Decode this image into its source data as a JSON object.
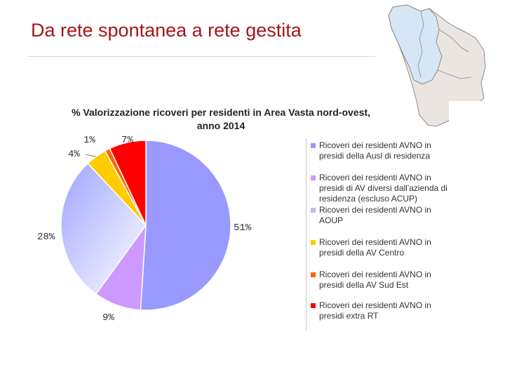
{
  "slide": {
    "title": "Da rete spontanea a rete gestita"
  },
  "chart_data": {
    "type": "pie",
    "title": "% Valorizzazione ricoveri per residenti in Area Vasta nord-ovest,",
    "subtitle": "anno 2014",
    "slices": [
      {
        "name": "Ricoveri dei residenti AVNO in presidi della Ausl di residenza",
        "value": 51,
        "label": "51%",
        "color": "#9999ff"
      },
      {
        "name": "Ricoveri dei residenti AVNO in presidi di AV diversi dall'azienda di residenza (escluso ACUP)",
        "value": 9,
        "label": "9%",
        "color": "#cc99ff"
      },
      {
        "name": "Ricoveri dei residenti AVNO in AOUP",
        "value": 28,
        "label": "28%",
        "color": "#b8bcff"
      },
      {
        "name": "Ricoveri dei residenti AVNO in presidi della AV Centro",
        "value": 4,
        "label": "4%",
        "color": "#ffcc00"
      },
      {
        "name": "Ricoveri dei residenti AVNO in presidi della AV Sud Est",
        "value": 1,
        "label": "1%",
        "color": "#ff6600"
      },
      {
        "name": "Ricoveri dei residenti AVNO in presidi extra RT",
        "value": 7,
        "label": "7%",
        "color": "#ff0000"
      }
    ],
    "legend_lines": [
      [
        "Ricoveri dei residenti AVNO in",
        "presidi della Ausl di residenza"
      ],
      [
        "Ricoveri dei residenti AVNO in",
        "presidi di AV diversi dall'azienda di",
        "residenza (escluso ACUP)"
      ],
      [
        "Ricoveri dei residenti AVNO in",
        "AOUP"
      ],
      [
        "Ricoveri dei residenti AVNO in",
        "presidi della AV Centro"
      ],
      [
        "Ricoveri dei residenti AVNO in",
        "presidi della AV Sud Est"
      ],
      [
        "Ricoveri dei residenti AVNO in",
        "presidi extra RT"
      ]
    ],
    "legend_position": "right"
  }
}
